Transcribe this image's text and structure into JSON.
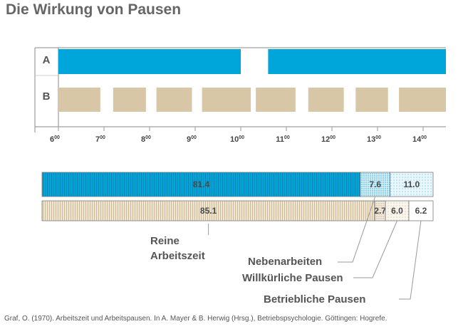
{
  "title": "Die Wirkung von Pausen",
  "source": "Graf, O. (1970). Arbeitszeit und Arbeitspausen. In A. Mayer & B. Herwig (Hrsg.), Betriebspsychologie. Göttingen: Hogrefe.",
  "colors": {
    "blue": "#00a6da",
    "tan": "#d7c7a7",
    "frame": "#8a8a8a"
  },
  "chart_data": [
    {
      "type": "timeline",
      "x_range": [
        6,
        14.5
      ],
      "ticks": [
        {
          "hour": 6,
          "label": "6",
          "sup": "00"
        },
        {
          "hour": 7,
          "label": "7",
          "sup": "00"
        },
        {
          "hour": 8,
          "label": "8",
          "sup": "00"
        },
        {
          "hour": 9,
          "label": "9",
          "sup": "00"
        },
        {
          "hour": 10,
          "label": "10",
          "sup": "00"
        },
        {
          "hour": 11,
          "label": "11",
          "sup": "00"
        },
        {
          "hour": 12,
          "label": "12",
          "sup": "00"
        },
        {
          "hour": 13,
          "label": "13",
          "sup": "00"
        },
        {
          "hour": 14,
          "label": "14",
          "sup": "00"
        }
      ],
      "rows": [
        {
          "label": "A",
          "color": "blue",
          "work_segments": [
            [
              6,
              10
            ],
            [
              10.6,
              14.5
            ]
          ]
        },
        {
          "label": "B",
          "color": "tan",
          "work_segments": [
            [
              6,
              6.92
            ],
            [
              7.2,
              7.92
            ],
            [
              8.15,
              8.93
            ],
            [
              9.15,
              10.22
            ],
            [
              10.33,
              11.2
            ],
            [
              11.48,
              12.26
            ],
            [
              12.52,
              13.23
            ],
            [
              13.47,
              14.5
            ]
          ]
        }
      ]
    },
    {
      "type": "bar",
      "stacked": true,
      "orientation": "horizontal",
      "unit": "%",
      "categories": [
        "Reine Arbeitszeit",
        "Nebenarbeiten",
        "Willkürliche Pausen",
        "Betriebliche Pausen"
      ],
      "series": [
        {
          "label": "A",
          "values": [
            81.4,
            7.6,
            11.0,
            0
          ],
          "value_labels": [
            "81.4",
            "7.6",
            "11.0",
            ""
          ]
        },
        {
          "label": "B",
          "values": [
            85.1,
            2.7,
            6.0,
            6.2
          ],
          "value_labels": [
            "85.1",
            "2.7",
            "6.0",
            "6.2"
          ]
        }
      ],
      "legend": [
        {
          "text": "Reine",
          "text2": "Arbeitszeit"
        },
        {
          "text": "Nebenarbeiten"
        },
        {
          "text": "Willkürliche Pausen"
        },
        {
          "text": "Betriebliche Pausen"
        }
      ]
    }
  ]
}
